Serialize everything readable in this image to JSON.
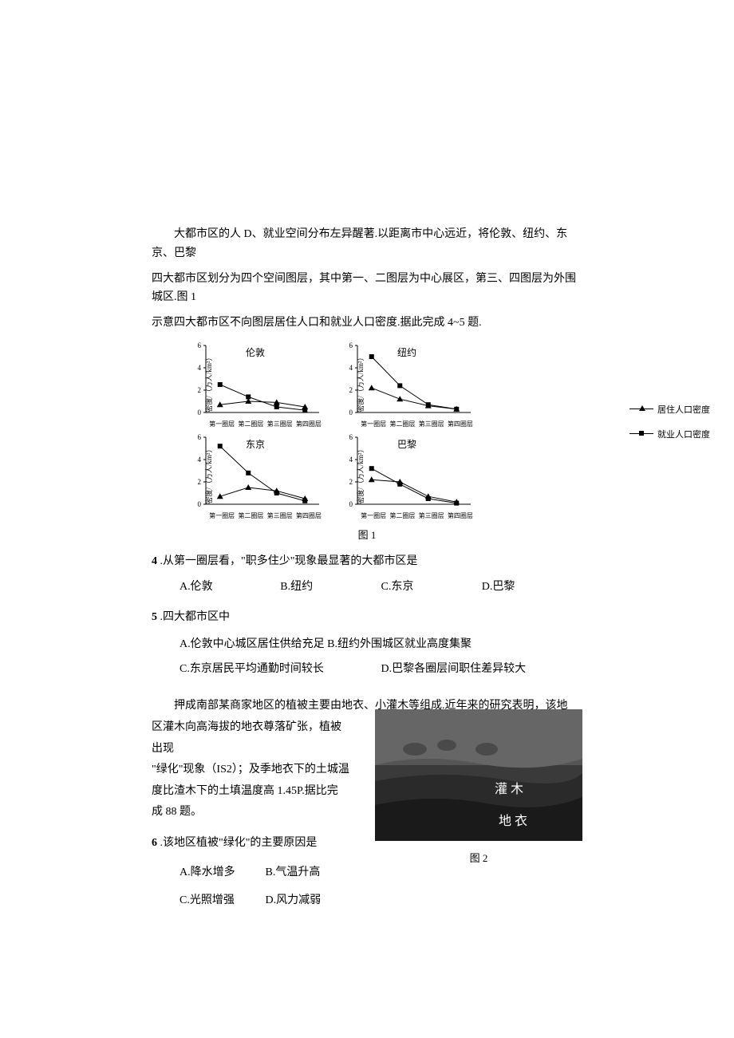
{
  "intro": {
    "line1": "大都市区的人 D、就业空间分布左异醒著.以距离市中心远近，将伦敦、纽约、东京、巴黎",
    "line2": "四大都市区划分为四个空间图层，其中第一、二图层为中心展区，第三、四图层为外围城区.图 1",
    "line3": "示意四大都市区不向图层居住人口和就业人口密度.据此完成 4~5 题."
  },
  "charts": {
    "y_label": "密度/（万人/km²）",
    "y_ticks": [
      0,
      2,
      4,
      6
    ],
    "x_labels": [
      "第一圈层",
      "第二圈层",
      "第三圈层",
      "第四圈层"
    ],
    "panels": [
      {
        "title": "伦敦",
        "residence": [
          0.7,
          1.0,
          0.9,
          0.5
        ],
        "employment": [
          2.5,
          1.4,
          0.5,
          0.2
        ]
      },
      {
        "title": "纽约",
        "residence": [
          2.2,
          1.2,
          0.6,
          0.3
        ],
        "employment": [
          5.0,
          2.4,
          0.7,
          0.3
        ]
      },
      {
        "title": "东京",
        "residence": [
          0.7,
          1.5,
          1.2,
          0.5
        ],
        "employment": [
          5.2,
          2.8,
          1.0,
          0.3
        ]
      },
      {
        "title": "巴黎",
        "residence": [
          2.2,
          2.0,
          0.7,
          0.2
        ],
        "employment": [
          3.2,
          1.8,
          0.5,
          0.1
        ]
      }
    ],
    "legend": {
      "residence": "居住人口密度",
      "employment": "就业人口密度"
    },
    "caption": "图 1",
    "line_color": "#000000",
    "axis_color": "#000000"
  },
  "q4": {
    "num": "4",
    "stem": ".从第一圈层看，\"职多住少\"现象最显著的大都市区是",
    "opts": {
      "A": "A.伦敦",
      "B": "B.纽约",
      "C": "C.东京",
      "D": "D.巴黎"
    }
  },
  "q5": {
    "num": "5",
    "stem": ".四大都市区中",
    "opts": {
      "A": "A.伦敦中心城区居住供给充足",
      "B": "B.纽约外围城区就业高度集聚",
      "C": "C.东京居民平均通勤时间较长",
      "D": "D.巴黎各圈层间职住差异较大"
    }
  },
  "passage2": {
    "p1": "押成南部某商家地区的植被主要由地衣、小灌木等组成.近年来的研究表明，该地",
    "p2": "区灌木向高海拔的地衣尊落矿张，植被出现",
    "p3": "\"绿化\"现象（IS2）；及季地衣下的土城温",
    "p4": "度比渣木下的土填温度高 1.45P.据比完",
    "p5": "成 88 题。"
  },
  "fig2": {
    "caption": "图 2",
    "labels": {
      "shrub": "灌  木",
      "lichen": "地  衣"
    }
  },
  "q6": {
    "num": "6",
    "stem": ".该地区植被\"绿化\"的主要原因是",
    "opts": {
      "A": "A.降水增多",
      "B": "B.气温升高",
      "C": "C.光照增强",
      "D": "D.风力减弱"
    }
  }
}
